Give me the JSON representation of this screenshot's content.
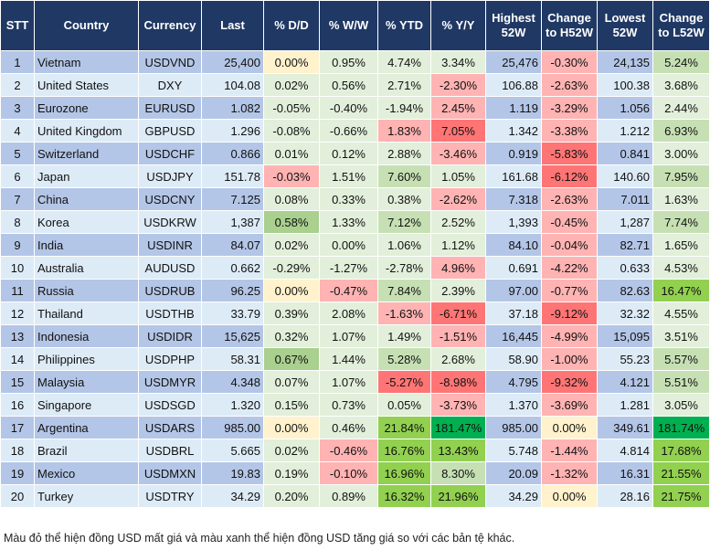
{
  "headers": [
    "STT",
    "Country",
    "Currency",
    "Last",
    "% D/D",
    "% W/W",
    "% YTD",
    "% Y/Y",
    "Highest 52W",
    "Change to H52W",
    "Lowest 52W",
    "Change to L52W"
  ],
  "colors": {
    "header": "#203864",
    "row_odd": "#b4c6e7",
    "row_even": "#ddebf7",
    "y": "#fff2cc",
    "g0": "#e2efda",
    "g1": "#c6e0b4",
    "g2": "#a9d08e",
    "g3": "#92d050",
    "g4": "#00b050",
    "p": "#ffb3b3",
    "r": "#ff7575"
  },
  "rows": [
    {
      "stt": "1",
      "country": "Vietnam",
      "currency": "USDVND",
      "last": "25,400",
      "dd": "0.00%",
      "ww": "0.95%",
      "ytd": "4.74%",
      "yy": "3.34%",
      "high": "25,476",
      "chh": "-0.30%",
      "low": "24,135",
      "chl": "5.24%",
      "shade": [
        "y",
        "g0",
        "g0",
        "g0",
        "p",
        "g1"
      ]
    },
    {
      "stt": "2",
      "country": "United States",
      "currency": "DXY",
      "last": "104.08",
      "dd": "0.02%",
      "ww": "0.56%",
      "ytd": "2.71%",
      "yy": "-2.30%",
      "high": "106.88",
      "chh": "-2.63%",
      "low": "100.38",
      "chl": "3.68%",
      "shade": [
        "g0",
        "g0",
        "g0",
        "p",
        "p",
        "g0"
      ]
    },
    {
      "stt": "3",
      "country": "Eurozone",
      "currency": "EURUSD",
      "last": "1.082",
      "dd": "-0.05%",
      "ww": "-0.40%",
      "ytd": "-1.94%",
      "yy": "2.45%",
      "high": "1.119",
      "chh": "-3.29%",
      "low": "1.056",
      "chl": "2.44%",
      "shade": [
        "g0",
        "g0",
        "g0",
        "p",
        "p",
        "g0"
      ]
    },
    {
      "stt": "4",
      "country": "United Kingdom",
      "currency": "GBPUSD",
      "last": "1.296",
      "dd": "-0.08%",
      "ww": "-0.66%",
      "ytd": "1.83%",
      "yy": "7.05%",
      "high": "1.342",
      "chh": "-3.38%",
      "low": "1.212",
      "chl": "6.93%",
      "shade": [
        "g0",
        "g0",
        "p",
        "r",
        "p",
        "g1"
      ]
    },
    {
      "stt": "5",
      "country": "Switzerland",
      "currency": "USDCHF",
      "last": "0.866",
      "dd": "0.01%",
      "ww": "0.12%",
      "ytd": "2.88%",
      "yy": "-3.46%",
      "high": "0.919",
      "chh": "-5.83%",
      "low": "0.841",
      "chl": "3.00%",
      "shade": [
        "g0",
        "g0",
        "g0",
        "p",
        "r",
        "g0"
      ]
    },
    {
      "stt": "6",
      "country": "Japan",
      "currency": "USDJPY",
      "last": "151.78",
      "dd": "-0.03%",
      "ww": "1.51%",
      "ytd": "7.60%",
      "yy": "1.05%",
      "high": "161.68",
      "chh": "-6.12%",
      "low": "140.60",
      "chl": "7.95%",
      "shade": [
        "p",
        "g0",
        "g1",
        "g0",
        "r",
        "g1"
      ]
    },
    {
      "stt": "7",
      "country": "China",
      "currency": "USDCNY",
      "last": "7.125",
      "dd": "0.08%",
      "ww": "0.33%",
      "ytd": "0.38%",
      "yy": "-2.62%",
      "high": "7.318",
      "chh": "-2.63%",
      "low": "7.011",
      "chl": "1.63%",
      "shade": [
        "g0",
        "g0",
        "g0",
        "p",
        "p",
        "g0"
      ]
    },
    {
      "stt": "8",
      "country": "Korea",
      "currency": "USDKRW",
      "last": "1,387",
      "dd": "0.58%",
      "ww": "1.33%",
      "ytd": "7.12%",
      "yy": "2.52%",
      "high": "1,393",
      "chh": "-0.45%",
      "low": "1,287",
      "chl": "7.74%",
      "shade": [
        "g2",
        "g0",
        "g1",
        "g0",
        "p",
        "g1"
      ]
    },
    {
      "stt": "9",
      "country": "India",
      "currency": "USDINR",
      "last": "84.07",
      "dd": "0.02%",
      "ww": "0.00%",
      "ytd": "1.06%",
      "yy": "1.12%",
      "high": "84.10",
      "chh": "-0.04%",
      "low": "82.71",
      "chl": "1.65%",
      "shade": [
        "g0",
        "g0",
        "g0",
        "g0",
        "p",
        "g0"
      ]
    },
    {
      "stt": "10",
      "country": "Australia",
      "currency": "AUDUSD",
      "last": "0.662",
      "dd": "-0.29%",
      "ww": "-1.27%",
      "ytd": "-2.78%",
      "yy": "4.96%",
      "high": "0.691",
      "chh": "-4.22%",
      "low": "0.633",
      "chl": "4.53%",
      "shade": [
        "g0",
        "g0",
        "g0",
        "p",
        "p",
        "g0"
      ]
    },
    {
      "stt": "11",
      "country": "Russia",
      "currency": "USDRUB",
      "last": "96.25",
      "dd": "0.00%",
      "ww": "-0.47%",
      "ytd": "7.84%",
      "yy": "2.39%",
      "high": "97.00",
      "chh": "-0.77%",
      "low": "82.63",
      "chl": "16.47%",
      "shade": [
        "y",
        "p",
        "g1",
        "g0",
        "p",
        "g3"
      ]
    },
    {
      "stt": "12",
      "country": "Thailand",
      "currency": "USDTHB",
      "last": "33.79",
      "dd": "0.39%",
      "ww": "2.08%",
      "ytd": "-1.63%",
      "yy": "-6.71%",
      "high": "37.18",
      "chh": "-9.12%",
      "low": "32.32",
      "chl": "4.55%",
      "shade": [
        "g0",
        "g0",
        "p",
        "r",
        "r",
        "g0"
      ]
    },
    {
      "stt": "13",
      "country": "Indonesia",
      "currency": "USDIDR",
      "last": "15,625",
      "dd": "0.32%",
      "ww": "1.07%",
      "ytd": "1.49%",
      "yy": "-1.51%",
      "high": "16,445",
      "chh": "-4.99%",
      "low": "15,095",
      "chl": "3.51%",
      "shade": [
        "g0",
        "g0",
        "g0",
        "p",
        "p",
        "g0"
      ]
    },
    {
      "stt": "14",
      "country": "Philippines",
      "currency": "USDPHP",
      "last": "58.31",
      "dd": "0.67%",
      "ww": "1.44%",
      "ytd": "5.28%",
      "yy": "2.68%",
      "high": "58.90",
      "chh": "-1.00%",
      "low": "55.23",
      "chl": "5.57%",
      "shade": [
        "g2",
        "g0",
        "g1",
        "g0",
        "p",
        "g1"
      ]
    },
    {
      "stt": "15",
      "country": "Malaysia",
      "currency": "USDMYR",
      "last": "4.348",
      "dd": "0.07%",
      "ww": "1.07%",
      "ytd": "-5.27%",
      "yy": "-8.98%",
      "high": "4.795",
      "chh": "-9.32%",
      "low": "4.121",
      "chl": "5.51%",
      "shade": [
        "g0",
        "g0",
        "r",
        "r",
        "r",
        "g1"
      ]
    },
    {
      "stt": "16",
      "country": "Singapore",
      "currency": "USDSGD",
      "last": "1.320",
      "dd": "0.15%",
      "ww": "0.73%",
      "ytd": "0.05%",
      "yy": "-3.73%",
      "high": "1.370",
      "chh": "-3.69%",
      "low": "1.281",
      "chl": "3.05%",
      "shade": [
        "g0",
        "g0",
        "g0",
        "p",
        "p",
        "g0"
      ]
    },
    {
      "stt": "17",
      "country": "Argentina",
      "currency": "USDARS",
      "last": "985.00",
      "dd": "0.00%",
      "ww": "0.46%",
      "ytd": "21.84%",
      "yy": "181.47%",
      "high": "985.00",
      "chh": "0.00%",
      "low": "349.61",
      "chl": "181.74%",
      "shade": [
        "y",
        "g0",
        "g3",
        "g4",
        "y",
        "g4"
      ]
    },
    {
      "stt": "18",
      "country": "Brazil",
      "currency": "USDBRL",
      "last": "5.665",
      "dd": "0.02%",
      "ww": "-0.46%",
      "ytd": "16.76%",
      "yy": "13.43%",
      "high": "5.748",
      "chh": "-1.44%",
      "low": "4.814",
      "chl": "17.68%",
      "shade": [
        "g0",
        "p",
        "g3",
        "g3",
        "p",
        "g3"
      ]
    },
    {
      "stt": "19",
      "country": "Mexico",
      "currency": "USDMXN",
      "last": "19.83",
      "dd": "0.19%",
      "ww": "-0.10%",
      "ytd": "16.96%",
      "yy": "8.30%",
      "high": "20.09",
      "chh": "-1.32%",
      "low": "16.31",
      "chl": "21.55%",
      "shade": [
        "g0",
        "p",
        "g3",
        "g1",
        "p",
        "g3"
      ]
    },
    {
      "stt": "20",
      "country": "Turkey",
      "currency": "USDTRY",
      "last": "34.29",
      "dd": "0.20%",
      "ww": "0.89%",
      "ytd": "16.32%",
      "yy": "21.96%",
      "high": "34.29",
      "chh": "0.00%",
      "low": "28.16",
      "chl": "21.75%",
      "shade": [
        "g0",
        "g0",
        "g3",
        "g3",
        "y",
        "g3"
      ]
    }
  ],
  "footnote": "Màu đỏ thể hiện đồng USD mất giá và màu xanh thể hiện đồng USD tăng giá so với các bản tệ khác."
}
